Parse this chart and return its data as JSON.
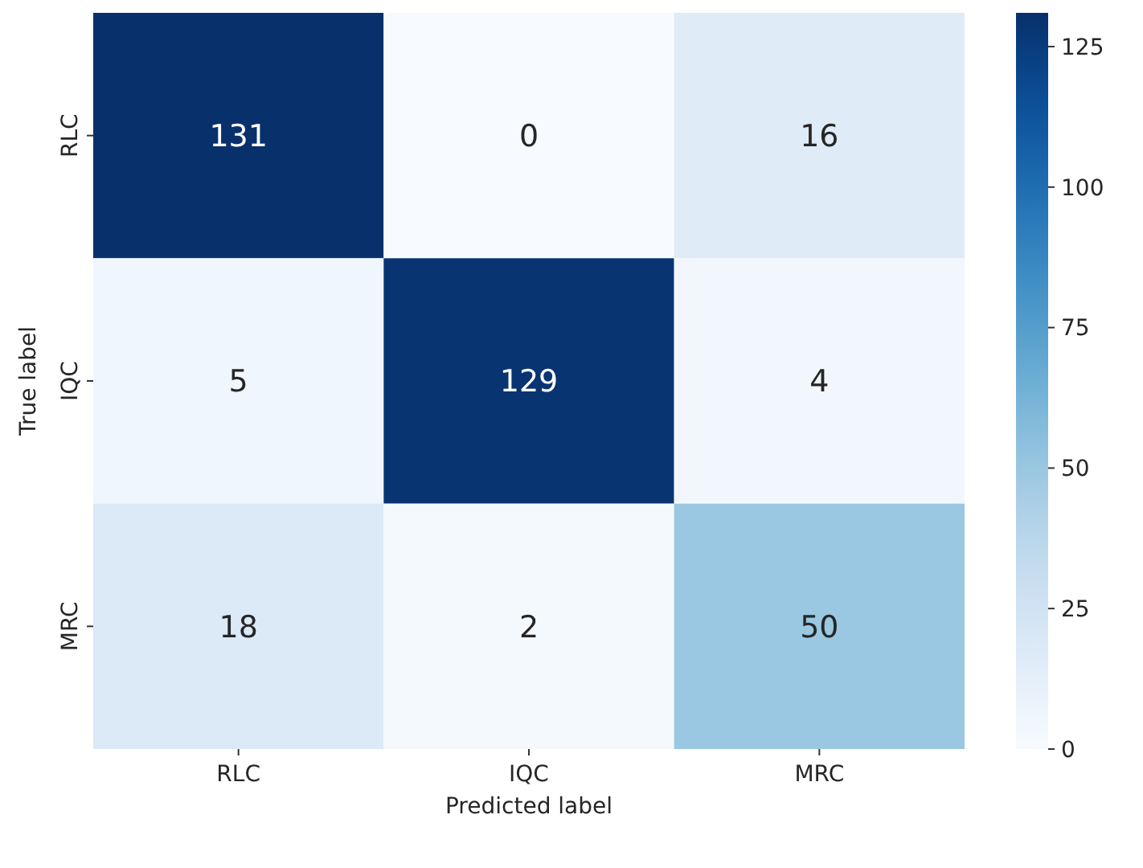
{
  "chart_data": {
    "type": "heatmap",
    "xlabel": "Predicted label",
    "ylabel": "True label",
    "categories": [
      "RLC",
      "IQC",
      "MRC"
    ],
    "y_categories": [
      "RLC",
      "IQC",
      "MRC"
    ],
    "cells": [
      [
        131,
        0,
        16
      ],
      [
        5,
        129,
        4
      ],
      [
        18,
        2,
        50
      ]
    ],
    "clim": [
      0,
      131
    ],
    "cticks": [
      0,
      25,
      50,
      75,
      100,
      125
    ],
    "data_labels": true
  }
}
